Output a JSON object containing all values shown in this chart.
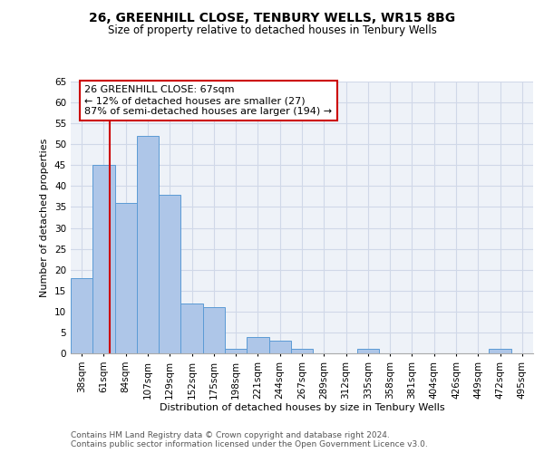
{
  "title1": "26, GREENHILL CLOSE, TENBURY WELLS, WR15 8BG",
  "title2": "Size of property relative to detached houses in Tenbury Wells",
  "xlabel": "Distribution of detached houses by size in Tenbury Wells",
  "ylabel": "Number of detached properties",
  "footnote1": "Contains HM Land Registry data © Crown copyright and database right 2024.",
  "footnote2": "Contains public sector information licensed under the Open Government Licence v3.0.",
  "categories": [
    "38sqm",
    "61sqm",
    "84sqm",
    "107sqm",
    "129sqm",
    "152sqm",
    "175sqm",
    "198sqm",
    "221sqm",
    "244sqm",
    "267sqm",
    "289sqm",
    "312sqm",
    "335sqm",
    "358sqm",
    "381sqm",
    "404sqm",
    "426sqm",
    "449sqm",
    "472sqm",
    "495sqm"
  ],
  "values": [
    18,
    45,
    36,
    52,
    38,
    12,
    11,
    1,
    4,
    3,
    1,
    0,
    0,
    1,
    0,
    0,
    0,
    0,
    0,
    1,
    0
  ],
  "bar_color": "#aec6e8",
  "bar_edge_color": "#5b9bd5",
  "grid_color": "#d0d8e8",
  "property_line_color": "#cc0000",
  "annotation_text": "26 GREENHILL CLOSE: 67sqm\n← 12% of detached houses are smaller (27)\n87% of semi-detached houses are larger (194) →",
  "annotation_box_color": "#ffffff",
  "annotation_box_edge_color": "#cc0000",
  "ylim": [
    0,
    65
  ],
  "yticks": [
    0,
    5,
    10,
    15,
    20,
    25,
    30,
    35,
    40,
    45,
    50,
    55,
    60,
    65
  ],
  "bg_color": "#eef2f8",
  "title1_fontsize": 10,
  "title2_fontsize": 8.5,
  "ylabel_fontsize": 8,
  "xlabel_fontsize": 8,
  "tick_fontsize": 7.5,
  "footnote_fontsize": 6.5
}
